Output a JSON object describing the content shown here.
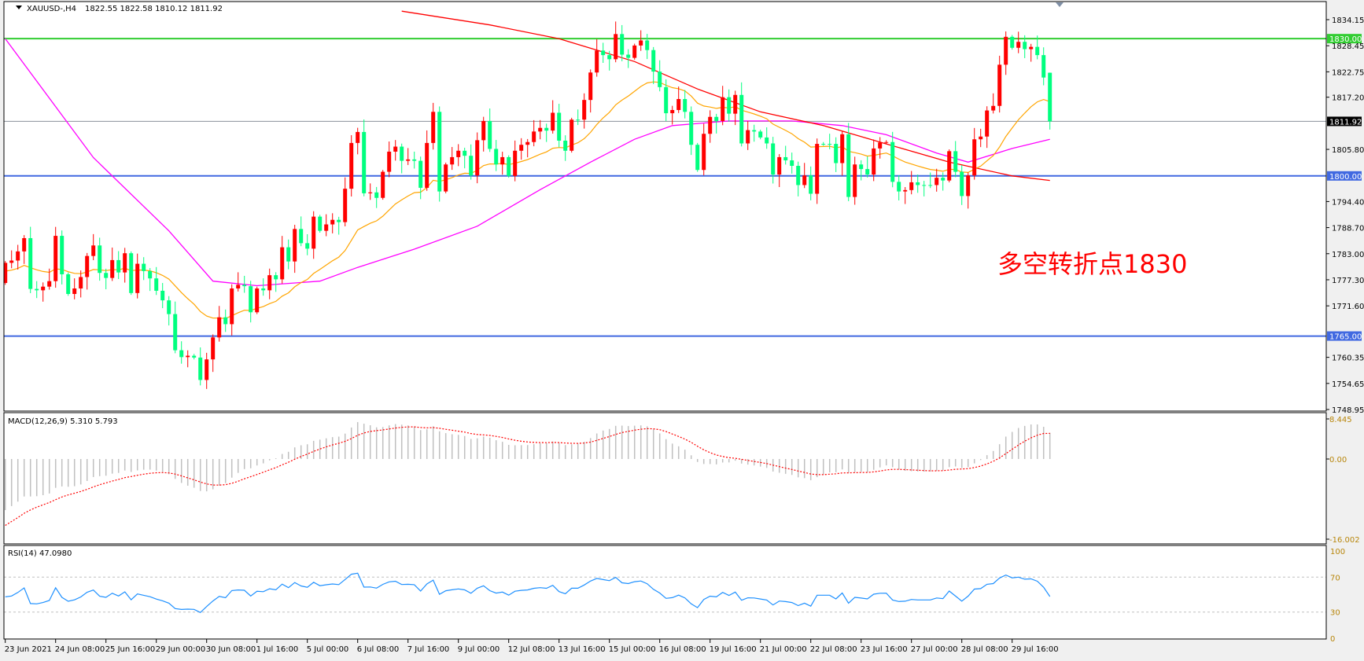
{
  "header": {
    "symbol": "XAUUSD-,H4",
    "ohlc": "1822.55 1822.58 1810.12 1811.92"
  },
  "annotation": "多空转折点1830",
  "colors": {
    "bull": "#ff0000",
    "bear": "#00ff7f",
    "ma_fast": "#ffa500",
    "ma_mid": "#ff00ff",
    "ma_slow": "#ff0000",
    "level_green": "#32cd32",
    "level_blue": "#4169e1",
    "macd_hist": "#c0c0c0",
    "macd_signal": "#ff0000",
    "rsi": "#1e90ff"
  },
  "chart_data": {
    "type": "candlestick",
    "symbol": "XAUUSD-",
    "timeframe": "H4",
    "last_bar": {
      "open": 1822.55,
      "high": 1822.58,
      "low": 1810.12,
      "close": 1811.92
    },
    "first_open": 1776.6,
    "closes": [
      1781,
      1781.5,
      1783.5,
      1786.4,
      1775.3,
      1775,
      1775.8,
      1777,
      1786.9,
      1778.5,
      1774.2,
      1775.4,
      1777.9,
      1782.5,
      1784.8,
      1778.8,
      1777.7,
      1781.6,
      1778.9,
      1783.1,
      1774.4,
      1780.8,
      1779.2,
      1777.6,
      1774.9,
      1772.8,
      1769.8,
      1761.9,
      1760.4,
      1760.7,
      1760.3,
      1755.4,
      1759.9,
      1764.7,
      1769.1,
      1767.6,
      1775.4,
      1776.2,
      1775.9,
      1770.2,
      1775.4,
      1775,
      1778.3,
      1777.4,
      1784.4,
      1781.3,
      1788.4,
      1785.3,
      1784.1,
      1791.1,
      1788,
      1789.4,
      1790.4,
      1789.9,
      1797.2,
      1807.2,
      1809.6,
      1796.2,
      1796.4,
      1795.2,
      1800.9,
      1805.3,
      1806.4,
      1803.3,
      1803.6,
      1803.3,
      1797.4,
      1807.2,
      1814,
      1796.6,
      1802.5,
      1804.1,
      1805.5,
      1804.4,
      1800.1,
      1807.8,
      1812,
      1805.9,
      1802.5,
      1804.1,
      1800,
      1805.5,
      1806.8,
      1807.4,
      1809.7,
      1810.5,
      1809.9,
      1813.8,
      1807.7,
      1805.5,
      1812.3,
      1812.3,
      1816.6,
      1822.6,
      1827.4,
      1826.4,
      1825.5,
      1831,
      1826.5,
      1825.8,
      1828.5,
      1829.6,
      1827.5,
      1822.8,
      1819.4,
      1813.7,
      1814.4,
      1816.8,
      1814,
      1806.8,
      1801.3,
      1809.2,
      1812.9,
      1812,
      1817.2,
      1813.6,
      1817.7,
      1807.1,
      1810,
      1809.7,
      1808.4,
      1807.1,
      1800.3,
      1804.1,
      1803.4,
      1802.2,
      1798,
      1800.1,
      1796.1,
      1807,
      1807,
      1807,
      1802.8,
      1809.1,
      1795.4,
      1802.5,
      1801.5,
      1800.3,
      1806,
      1807.3,
      1807.4,
      1798.7,
      1796.6,
      1796.9,
      1798.6,
      1798,
      1798,
      1798,
      1799.6,
      1799,
      1805.4,
      1800.9,
      1795.6,
      1800.1,
      1808,
      1808.6,
      1814.3,
      1815.3,
      1824.3,
      1830.4,
      1828,
      1829.3,
      1827.7,
      1828.2,
      1826.4,
      1821.5,
      1811.92
    ],
    "ma_mid": [
      [
        0,
        1830
      ],
      [
        14,
        1804
      ],
      [
        26,
        1788
      ],
      [
        33,
        1777
      ],
      [
        40,
        1776
      ],
      [
        50,
        1777
      ],
      [
        56,
        1780
      ],
      [
        65,
        1784
      ],
      [
        75,
        1789
      ],
      [
        85,
        1797
      ],
      [
        93,
        1803
      ],
      [
        100,
        1808
      ],
      [
        106,
        1811
      ],
      [
        115,
        1812
      ],
      [
        125,
        1812
      ],
      [
        133,
        1811
      ],
      [
        140,
        1809
      ],
      [
        148,
        1805
      ],
      [
        153,
        1803
      ],
      [
        160,
        1806
      ],
      [
        166,
        1808
      ]
    ],
    "ma_slow": [
      [
        63,
        1836
      ],
      [
        77,
        1833
      ],
      [
        88,
        1830
      ],
      [
        100,
        1825
      ],
      [
        110,
        1819
      ],
      [
        120,
        1814
      ],
      [
        130,
        1811
      ],
      [
        140,
        1807
      ],
      [
        150,
        1803
      ],
      [
        160,
        1800
      ],
      [
        166,
        1799
      ]
    ],
    "levels": [
      {
        "price": 1830.0,
        "label": "1830.00",
        "color": "#32cd32"
      },
      {
        "price": 1811.92,
        "label": "1811.92",
        "color": "#000000"
      },
      {
        "price": 1800.0,
        "label": "1800.00",
        "color": "#4169e1"
      },
      {
        "price": 1765.0,
        "label": "1765.00",
        "color": "#4169e1"
      }
    ],
    "price_ticks": [
      "1834.15",
      "1828.45",
      "1822.75",
      "1817.20",
      "1805.80",
      "1794.40",
      "1788.70",
      "1783.00",
      "1777.30",
      "1771.60",
      "1760.35",
      "1754.65",
      "1748.95"
    ],
    "ylim": [
      1748.95,
      1834.15
    ],
    "time_labels": [
      "23 Jun 2021",
      "24 Jun 08:00",
      "25 Jun 16:00",
      "29 Jun 00:00",
      "30 Jun 08:00",
      "1 Jul 16:00",
      "5 Jul 00:00",
      "6 Jul 08:00",
      "7 Jul 16:00",
      "9 Jul 00:00",
      "12 Jul 08:00",
      "13 Jul 16:00",
      "15 Jul 00:00",
      "16 Jul 08:00",
      "19 Jul 16:00",
      "21 Jul 00:00",
      "22 Jul 08:00",
      "23 Jul 16:00",
      "27 Jul 00:00",
      "28 Jul 08:00",
      "29 Jul 16:00"
    ],
    "macd": {
      "label": "MACD(12,26,9) 5.310 5.793",
      "ticks": [
        "8.445",
        "0.00",
        "-16.002"
      ],
      "ylim": [
        -16.002,
        8.445
      ]
    },
    "rsi": {
      "label": "RSI(14) 47.0980",
      "ticks": [
        "100",
        "70",
        "30",
        "0"
      ],
      "levels": [
        70,
        30
      ],
      "ylim": [
        0,
        100
      ]
    }
  }
}
